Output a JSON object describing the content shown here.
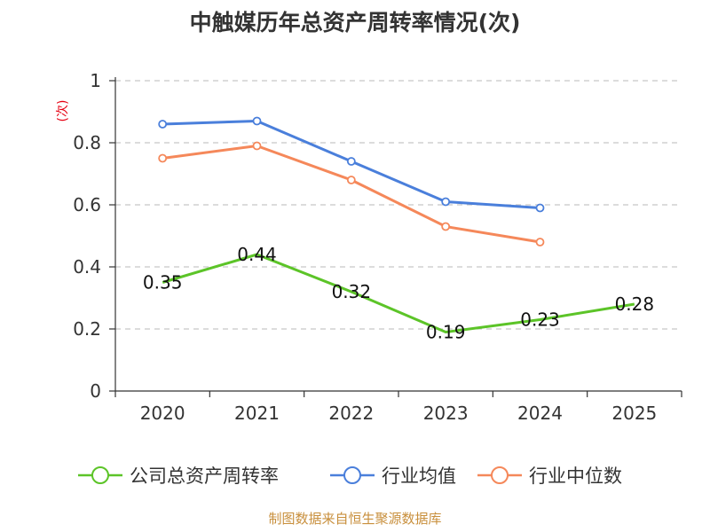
{
  "chart_data": {
    "type": "line",
    "title": "中触媒历年总资产周转率情况(次)",
    "ylabel": "(次)",
    "xlabel": "",
    "categories": [
      "2020",
      "2021",
      "2022",
      "2023",
      "2024",
      "2025"
    ],
    "ylim": [
      0,
      1
    ],
    "yticks": [
      "0",
      "0.2",
      "0.4",
      "0.6",
      "0.8",
      "1"
    ],
    "grid": true,
    "legend_position": "bottom",
    "series": [
      {
        "name": "公司总资产周转率",
        "color": "#5cc428",
        "values": [
          0.35,
          0.44,
          0.32,
          0.19,
          0.23,
          0.28
        ],
        "labels": [
          "0.35",
          "0.44",
          "0.32",
          "0.19",
          "0.23",
          "0.28"
        ],
        "markers": false
      },
      {
        "name": "行业均值",
        "color": "#4a7fdb",
        "values": [
          0.86,
          0.87,
          0.74,
          0.61,
          0.59,
          null
        ],
        "markers": true
      },
      {
        "name": "行业中位数",
        "color": "#f5885a",
        "values": [
          0.75,
          0.79,
          0.68,
          0.53,
          0.48,
          null
        ],
        "markers": true
      }
    ],
    "source": "制图数据来自恒生聚源数据库"
  }
}
